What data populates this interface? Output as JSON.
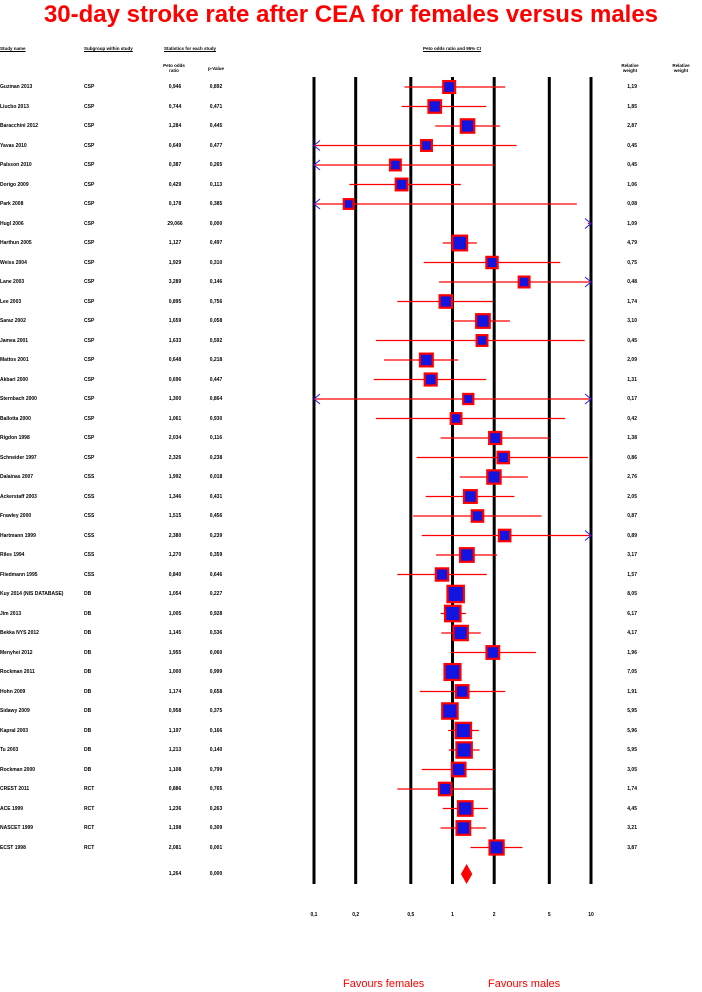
{
  "title": "30-day stroke rate after CEA for females versus males",
  "headers": {
    "study_name": "Study name",
    "subgroup": "Subgroup within study",
    "statistics": "Statistics for each study",
    "peto_or": "Peto odds ratio",
    "p_value": "p-Value",
    "plot": "Peto odds ratio and 95% CI",
    "relative_weight": "Relative weight",
    "relative_weight_2": "Relative weight"
  },
  "favours_left": "Favours females",
  "favours_right": "Favours males",
  "studies": [
    {
      "name": "Guzman 2013",
      "subgroup": "CSP",
      "or": "0,946",
      "p": "0,892",
      "rw": "1,19"
    },
    {
      "name": "Liucbo 2013",
      "subgroup": "CSP",
      "or": "0,744",
      "p": "0,471",
      "rw": "1,85"
    },
    {
      "name": "Baracchini 2012",
      "subgroup": "CSP",
      "or": "1,284",
      "p": "0,445",
      "rw": "2,87"
    },
    {
      "name": "Yavas 2010",
      "subgroup": "CSP",
      "or": "0,649",
      "p": "0,477",
      "rw": "0,45"
    },
    {
      "name": "Palsson 2010",
      "subgroup": "CSP",
      "or": "0,387",
      "p": "0,265",
      "rw": "0,45"
    },
    {
      "name": "Dorigo 2009",
      "subgroup": "CSP",
      "or": "0,429",
      "p": "0,113",
      "rw": "1,06"
    },
    {
      "name": "Park 2008",
      "subgroup": "CSP",
      "or": "0,178",
      "p": "0,385",
      "rw": "0,08"
    },
    {
      "name": "Hugl 2006",
      "subgroup": "CSP",
      "or": "29,066",
      "p": "0,000",
      "rw": "1,09"
    },
    {
      "name": "Harthun 2005",
      "subgroup": "CSP",
      "or": "1,127",
      "p": "0,497",
      "rw": "4,79"
    },
    {
      "name": "Weiss 2004",
      "subgroup": "CSP",
      "or": "1,929",
      "p": "0,310",
      "rw": "0,75"
    },
    {
      "name": "Lane 2003",
      "subgroup": "CSP",
      "or": "3,289",
      "p": "0,146",
      "rw": "0,48"
    },
    {
      "name": "Lee 2003",
      "subgroup": "CSP",
      "or": "0,895",
      "p": "0,756",
      "rw": "1,74"
    },
    {
      "name": "Saraz 2002",
      "subgroup": "CSP",
      "or": "1,659",
      "p": "0,058",
      "rw": "3,10"
    },
    {
      "name": "Jamea 2001",
      "subgroup": "CSP",
      "or": "1,633",
      "p": "0,592",
      "rw": "0,45"
    },
    {
      "name": "Mattos 2001",
      "subgroup": "CSP",
      "or": "0,648",
      "p": "0,218",
      "rw": "2,09"
    },
    {
      "name": "Akbari 2000",
      "subgroup": "CSP",
      "or": "0,696",
      "p": "0,447",
      "rw": "1,31"
    },
    {
      "name": "Sternbach 2000",
      "subgroup": "CSP",
      "or": "1,300",
      "p": "0,864",
      "rw": "0,17"
    },
    {
      "name": "Ballotta 2000",
      "subgroup": "CSP",
      "or": "1,061",
      "p": "0,930",
      "rw": "0,42"
    },
    {
      "name": "Rigdon 1998",
      "subgroup": "CSP",
      "or": "2,034",
      "p": "0,116",
      "rw": "1,38"
    },
    {
      "name": "Schneider 1997",
      "subgroup": "CSP",
      "or": "2,326",
      "p": "0,238",
      "rw": "0,86"
    },
    {
      "name": "Dalainas 2007",
      "subgroup": "CSS",
      "or": "1,992",
      "p": "0,018",
      "rw": "2,76"
    },
    {
      "name": "Ackerstaff 2003",
      "subgroup": "CSS",
      "or": "1,346",
      "p": "0,431",
      "rw": "2,05"
    },
    {
      "name": "Frawley 2000",
      "subgroup": "CSS",
      "or": "1,515",
      "p": "0,456",
      "rw": "0,87"
    },
    {
      "name": "Hartmann 1999",
      "subgroup": "CSS",
      "or": "2,380",
      "p": "0,239",
      "rw": "0,89"
    },
    {
      "name": "Riles 1994",
      "subgroup": "CSS",
      "or": "1,270",
      "p": "0,359",
      "rw": "3,17"
    },
    {
      "name": "Fliedmann 1995",
      "subgroup": "CSS",
      "or": "0,840",
      "p": "0,646",
      "rw": "1,57"
    },
    {
      "name": "Kuy 2014 (NIS DATABASE)",
      "subgroup": "DB",
      "or": "1,054",
      "p": "0,227",
      "rw": "8,05"
    },
    {
      "name": "Jim 2013",
      "subgroup": "DB",
      "or": "1,005",
      "p": "0,928",
      "rw": "6,17"
    },
    {
      "name": "Bekka NYS 2012",
      "subgroup": "DB",
      "or": "1,145",
      "p": "0,536",
      "rw": "4,17"
    },
    {
      "name": "Menyhei 2012",
      "subgroup": "DB",
      "or": "1,955",
      "p": "0,060",
      "rw": "1,96"
    },
    {
      "name": "Rockman 2011",
      "subgroup": "DB",
      "or": "1,000",
      "p": "0,999",
      "rw": "7,05"
    },
    {
      "name": "Hohn 2009",
      "subgroup": "DB",
      "or": "1,174",
      "p": "0,658",
      "rw": "1,91"
    },
    {
      "name": "Sidawy 2009",
      "subgroup": "DB",
      "or": "0,958",
      "p": "0,375",
      "rw": "5,95"
    },
    {
      "name": "Kapral 2003",
      "subgroup": "DB",
      "or": "1,197",
      "p": "0,166",
      "rw": "5,96"
    },
    {
      "name": "Tu 2003",
      "subgroup": "DB",
      "or": "1,213",
      "p": "0,140",
      "rw": "5,95"
    },
    {
      "name": "Rockman 2000",
      "subgroup": "DB",
      "or": "1,108",
      "p": "0,799",
      "rw": "3,05"
    },
    {
      "name": "CREST 2011",
      "subgroup": "RCT",
      "or": "0,886",
      "p": "0,765",
      "rw": "1,74"
    },
    {
      "name": "ACE 1999",
      "subgroup": "RCT",
      "or": "1,236",
      "p": "0,263",
      "rw": "4,45"
    },
    {
      "name": "NASCET 1999",
      "subgroup": "RCT",
      "or": "1,198",
      "p": "0,309",
      "rw": "3,21"
    },
    {
      "name": "ECST 1998",
      "subgroup": "RCT",
      "or": "2,081",
      "p": "0,001",
      "rw": "3,87"
    }
  ],
  "summary": {
    "or": "1,264",
    "p": "0,000"
  },
  "chart_data": {
    "type": "forest",
    "title": "30-day stroke rate after CEA for females versus males",
    "xlabel": "Peto odds ratio and 95% CI",
    "x_scale": "log",
    "xlim": [
      0.1,
      10
    ],
    "x_ticks": [
      0.1,
      0.2,
      0.5,
      1,
      2,
      5,
      10
    ],
    "x_tick_labels": [
      "0,1",
      "0,2",
      "0,5",
      "1",
      "2",
      "5",
      "10"
    ],
    "series": [
      {
        "study": "Guzman 2013",
        "or": 0.946,
        "lo": 0.45,
        "hi": 2.4,
        "weight": 1.19
      },
      {
        "study": "Liucbo 2013",
        "or": 0.744,
        "lo": 0.43,
        "hi": 1.75,
        "weight": 1.85
      },
      {
        "study": "Baracchini 2012",
        "or": 1.284,
        "lo": 0.75,
        "hi": 2.2,
        "weight": 2.87
      },
      {
        "study": "Yavas 2010",
        "or": 0.649,
        "lo": 0.1,
        "hi": 2.9,
        "weight": 0.45
      },
      {
        "study": "Palsson 2010",
        "or": 0.387,
        "lo": 0.1,
        "hi": 2.0,
        "weight": 0.45
      },
      {
        "study": "Dorigo 2009",
        "or": 0.429,
        "lo": 0.18,
        "hi": 1.15,
        "weight": 1.06
      },
      {
        "study": "Park 2008",
        "or": 0.178,
        "lo": 0.1,
        "hi": 7.9,
        "weight": 0.08
      },
      {
        "study": "Hugl 2006",
        "or": 29.066,
        "lo": 9.5,
        "hi": 10,
        "weight": 1.09
      },
      {
        "study": "Harthun 2005",
        "or": 1.127,
        "lo": 0.85,
        "hi": 1.5,
        "weight": 4.79
      },
      {
        "study": "Weiss 2004",
        "or": 1.929,
        "lo": 0.62,
        "hi": 6.0,
        "weight": 0.75
      },
      {
        "study": "Lane 2003",
        "or": 3.289,
        "lo": 0.8,
        "hi": 10,
        "weight": 0.48
      },
      {
        "study": "Lee 2003",
        "or": 0.895,
        "lo": 0.4,
        "hi": 1.95,
        "weight": 1.74
      },
      {
        "study": "Saraz 2002",
        "or": 1.659,
        "lo": 1.0,
        "hi": 2.6,
        "weight": 3.1
      },
      {
        "study": "Jamea 2001",
        "or": 1.633,
        "lo": 0.28,
        "hi": 9.0,
        "weight": 0.45
      },
      {
        "study": "Mattos 2001",
        "or": 0.648,
        "lo": 0.32,
        "hi": 1.1,
        "weight": 2.09
      },
      {
        "study": "Akbari 2000",
        "or": 0.696,
        "lo": 0.27,
        "hi": 1.75,
        "weight": 1.31
      },
      {
        "study": "Sternbach 2000",
        "or": 1.3,
        "lo": 0.1,
        "hi": 10,
        "weight": 0.17
      },
      {
        "study": "Ballotta 2000",
        "or": 1.061,
        "lo": 0.28,
        "hi": 6.5,
        "weight": 0.42
      },
      {
        "study": "Rigdon 1998",
        "or": 2.034,
        "lo": 0.82,
        "hi": 5.0,
        "weight": 1.38
      },
      {
        "study": "Schneider 1997",
        "or": 2.326,
        "lo": 0.55,
        "hi": 9.5,
        "weight": 0.86
      },
      {
        "study": "Dalainas 2007",
        "or": 1.992,
        "lo": 1.13,
        "hi": 3.5,
        "weight": 2.76
      },
      {
        "study": "Ackerstaff 2003",
        "or": 1.346,
        "lo": 0.64,
        "hi": 2.8,
        "weight": 2.05
      },
      {
        "study": "Frawley 2000",
        "or": 1.515,
        "lo": 0.52,
        "hi": 4.4,
        "weight": 0.87
      },
      {
        "study": "Hartmann 1999",
        "or": 2.38,
        "lo": 0.6,
        "hi": 10,
        "weight": 0.89
      },
      {
        "study": "Riles 1994",
        "or": 1.27,
        "lo": 0.76,
        "hi": 2.1,
        "weight": 3.17
      },
      {
        "study": "Fliedmann 1995",
        "or": 0.84,
        "lo": 0.4,
        "hi": 1.77,
        "weight": 1.57
      },
      {
        "study": "Kuy 2014 (NIS DATABASE)",
        "or": 1.054,
        "lo": 0.97,
        "hi": 1.15,
        "weight": 8.05
      },
      {
        "study": "Jim 2013",
        "or": 1.005,
        "lo": 0.82,
        "hi": 1.25,
        "weight": 6.17
      },
      {
        "study": "Bekka NYS 2012",
        "or": 1.145,
        "lo": 0.83,
        "hi": 1.6,
        "weight": 4.17
      },
      {
        "study": "Menyhei 2012",
        "or": 1.955,
        "lo": 0.97,
        "hi": 4.0,
        "weight": 1.96
      },
      {
        "study": "Rockman 2011",
        "or": 1.0,
        "lo": 0.9,
        "hi": 1.11,
        "weight": 7.05
      },
      {
        "study": "Hohn 2009",
        "or": 1.174,
        "lo": 0.58,
        "hi": 2.4,
        "weight": 1.91
      },
      {
        "study": "Sidawy 2009",
        "or": 0.958,
        "lo": 0.85,
        "hi": 1.08,
        "weight": 5.95
      },
      {
        "study": "Kapral 2003",
        "or": 1.197,
        "lo": 0.93,
        "hi": 1.55,
        "weight": 5.96
      },
      {
        "study": "Tu 2003",
        "or": 1.213,
        "lo": 0.94,
        "hi": 1.57,
        "weight": 5.95
      },
      {
        "study": "Rockman 2000",
        "or": 1.108,
        "lo": 0.6,
        "hi": 2.0,
        "weight": 3.05
      },
      {
        "study": "CREST 2011",
        "or": 0.886,
        "lo": 0.4,
        "hi": 1.95,
        "weight": 1.74
      },
      {
        "study": "ACE 1999",
        "or": 1.236,
        "lo": 0.85,
        "hi": 1.8,
        "weight": 4.45
      },
      {
        "study": "NASCET 1999",
        "or": 1.198,
        "lo": 0.82,
        "hi": 1.75,
        "weight": 3.21
      },
      {
        "study": "ECST 1998",
        "or": 2.081,
        "lo": 1.35,
        "hi": 3.2,
        "weight": 3.87
      }
    ],
    "summary": {
      "or": 1.264,
      "lo": 1.15,
      "hi": 1.39
    }
  }
}
